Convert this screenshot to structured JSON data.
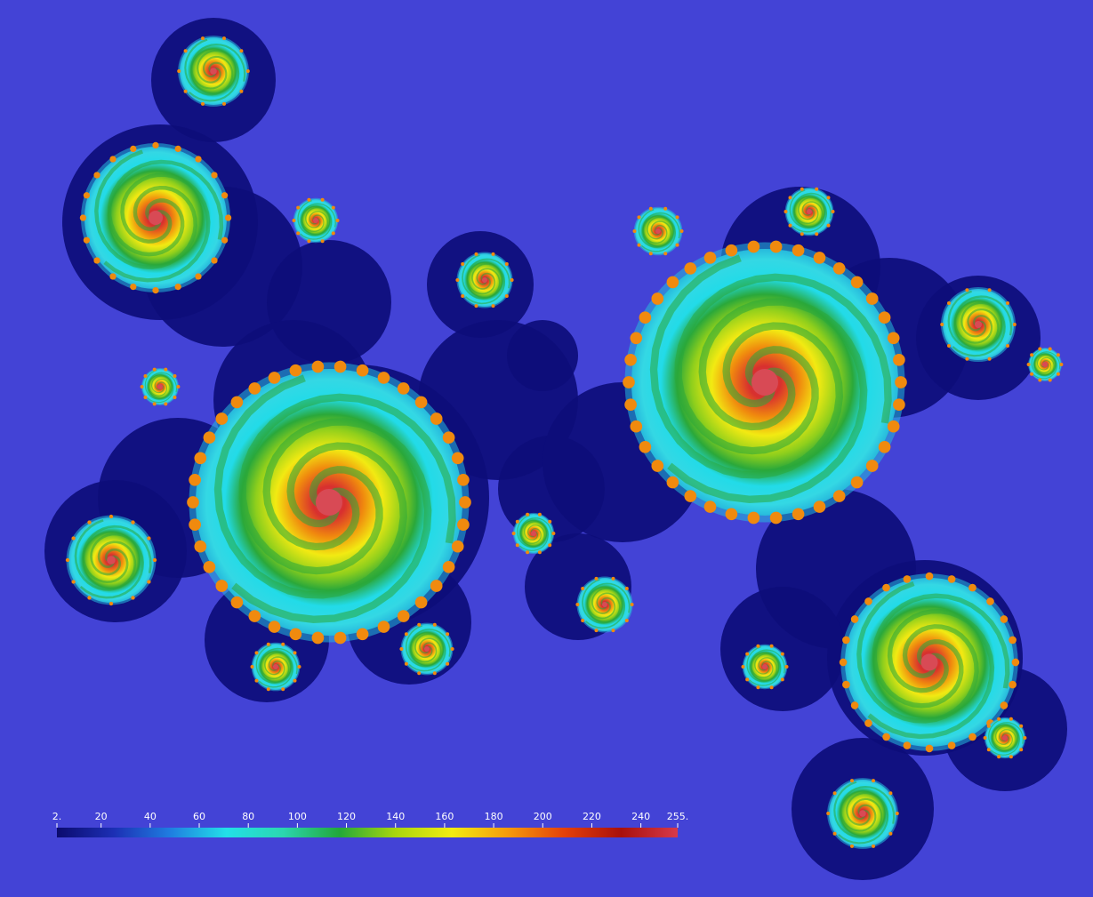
{
  "colorbar": {
    "ticks": [
      "2.",
      "20",
      "40",
      "60",
      "80",
      "100",
      "120",
      "140",
      "160",
      "180",
      "200",
      "220",
      "240",
      "255."
    ],
    "tick_values": [
      2,
      20,
      40,
      60,
      80,
      100,
      120,
      140,
      160,
      180,
      200,
      220,
      240,
      255
    ],
    "range": [
      2,
      255
    ],
    "colormap": [
      "#0b0b6e",
      "#1c2fb4",
      "#1f7de0",
      "#22e0e8",
      "#2bd6b0",
      "#22a83a",
      "#a8d60e",
      "#f2ec10",
      "#f59a0c",
      "#e4400a",
      "#a8100c",
      "#d83a4a"
    ]
  },
  "colors": {
    "background": "#4343d6",
    "set_interior": "#0d0d7a",
    "cyan": "#22dbe8",
    "green": "#2aa83a",
    "yellow": "#f2ea12",
    "orange": "#f08a0e",
    "red": "#d8302e"
  }
}
